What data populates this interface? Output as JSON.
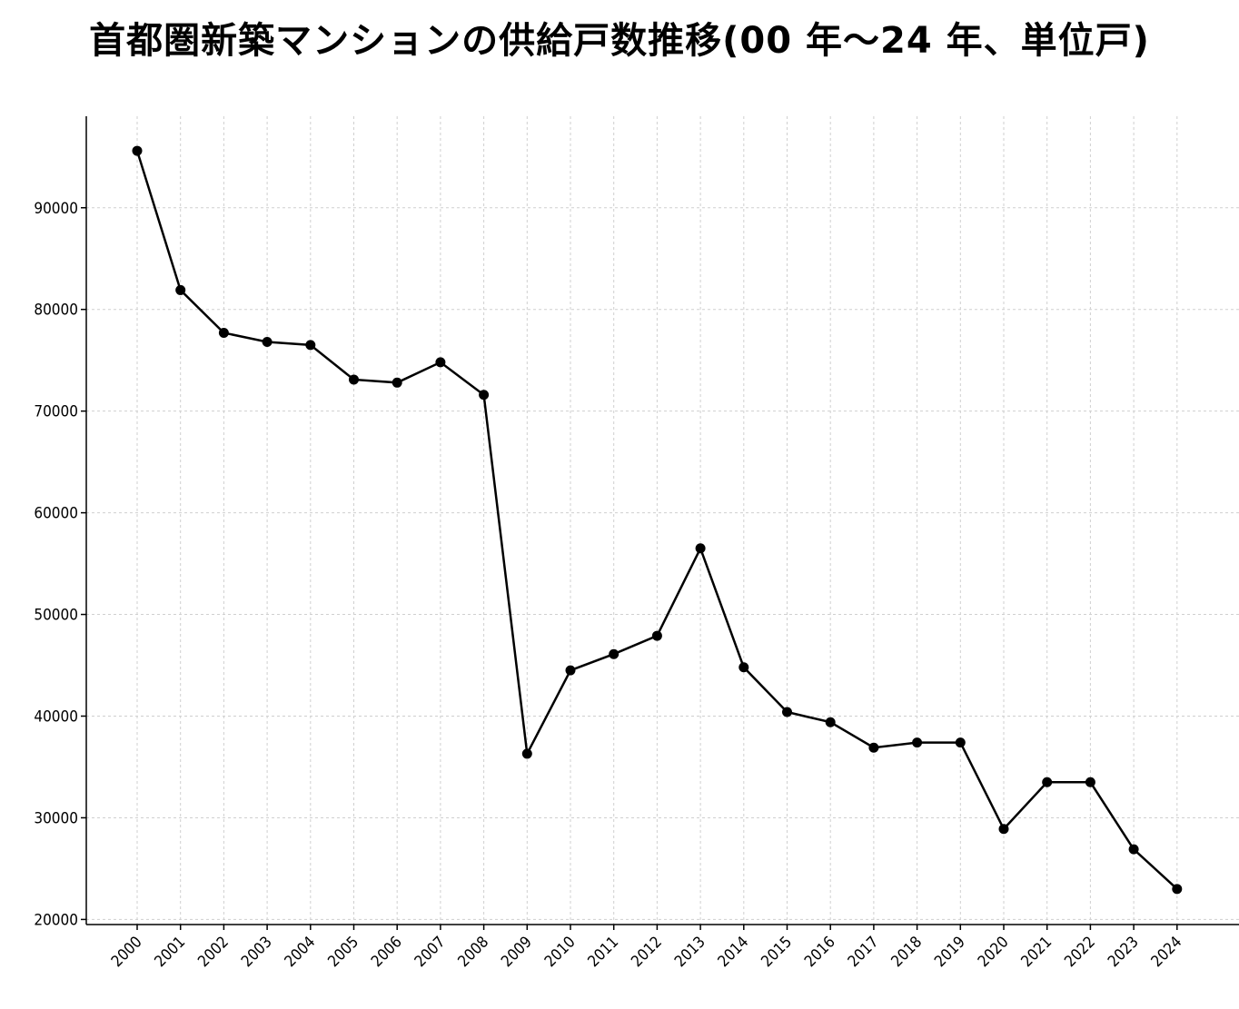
{
  "chart_data": {
    "type": "line",
    "title": "首都圏新築マンションの供給戸数推移(00 年〜24 年、単位戸)",
    "xlabel": "",
    "ylabel": "",
    "x": [
      "2000",
      "2001",
      "2002",
      "2003",
      "2004",
      "2005",
      "2006",
      "2007",
      "2008",
      "2009",
      "2010",
      "2011",
      "2012",
      "2013",
      "2014",
      "2015",
      "2016",
      "2017",
      "2018",
      "2019",
      "2020",
      "2021",
      "2022",
      "2023",
      "2024"
    ],
    "series": [
      {
        "values": [
          95600,
          81900,
          77700,
          76800,
          76500,
          73100,
          72800,
          74800,
          71600,
          36300,
          44500,
          46100,
          47900,
          56500,
          44800,
          40400,
          39400,
          36900,
          37400,
          37400,
          28900,
          33500,
          33500,
          26900,
          23000
        ],
        "color": "#000000"
      }
    ],
    "yticks": [
      20000,
      30000,
      40000,
      50000,
      60000,
      70000,
      80000,
      90000
    ],
    "ylim": [
      19500,
      99000
    ],
    "grid": true,
    "x_tick_rotation": "45-degree"
  }
}
